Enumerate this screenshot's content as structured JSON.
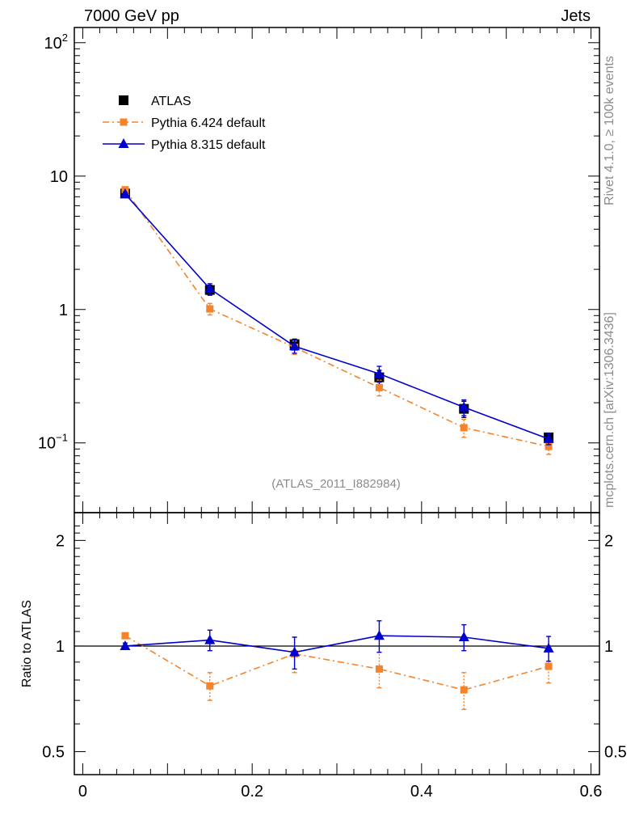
{
  "header": {
    "left": "7000 GeV pp",
    "right": "Jets"
  },
  "side": {
    "rivet": "Rivet 4.1.0, ≥ 100k events",
    "mcplots": "mcplots.cern.ch [arXiv:1306.3436]"
  },
  "chart_data": {
    "type": "line",
    "analysis_label": "(ATLAS_2011_I882984)",
    "x": [
      0.05,
      0.15,
      0.25,
      0.35,
      0.45,
      0.55
    ],
    "xlim": [
      -0.01,
      0.61
    ],
    "xticks": [
      0,
      0.2,
      0.4,
      0.6
    ],
    "xticklabels": [
      "0",
      "0.2",
      "0.4",
      "0.6"
    ],
    "main": {
      "yscale": "log",
      "ylim": [
        0.03,
        130
      ],
      "yticklabels": [
        {
          "value": 100,
          "base": "10",
          "exp": "2"
        },
        {
          "value": 10,
          "base": "10",
          "exp": ""
        },
        {
          "value": 1,
          "base": "1",
          "exp": ""
        },
        {
          "value": 0.1,
          "base": "10",
          "exp": "−1"
        }
      ]
    },
    "ratio": {
      "ylabel": "Ratio to ATLAS",
      "yscale": "log",
      "ylim": [
        0.43,
        2.4
      ],
      "yticklabels": [
        {
          "value": 2,
          "label": "2"
        },
        {
          "value": 1,
          "label": "1"
        },
        {
          "value": 0.5,
          "label": "0.5"
        }
      ]
    },
    "series": [
      {
        "name": "ATLAS",
        "color": "#000000",
        "marker": "square",
        "line": "none",
        "values": [
          7.4,
          1.4,
          0.55,
          0.31,
          0.18,
          0.11
        ],
        "err": [
          0.3,
          0.12,
          0.05,
          0.04,
          0.025,
          0.008
        ],
        "ratio": [
          1.0,
          1.0,
          1.0,
          1.0,
          1.0,
          1.0
        ],
        "ratio_err": [
          0.0,
          0.0,
          0.0,
          0.0,
          0.0,
          0.0
        ]
      },
      {
        "name": "Pythia 6.424 default",
        "color": "#f5832b",
        "marker": "square-small",
        "line": "dashdot",
        "values": [
          7.9,
          1.01,
          0.52,
          0.26,
          0.13,
          0.094
        ],
        "err": [
          0.2,
          0.1,
          0.06,
          0.035,
          0.02,
          0.012
        ],
        "ratio": [
          1.07,
          0.77,
          0.95,
          0.86,
          0.75,
          0.875
        ],
        "ratio_err": [
          0.02,
          0.07,
          0.11,
          0.1,
          0.09,
          0.09
        ]
      },
      {
        "name": "Pythia 8.315 default",
        "color": "#0000cc",
        "marker": "triangle",
        "line": "solid",
        "values": [
          7.35,
          1.43,
          0.53,
          0.33,
          0.185,
          0.107
        ],
        "err": [
          0.2,
          0.13,
          0.06,
          0.045,
          0.025,
          0.01
        ],
        "ratio": [
          1.0,
          1.04,
          0.96,
          1.07,
          1.06,
          0.985
        ],
        "ratio_err": [
          0.02,
          0.07,
          0.1,
          0.11,
          0.09,
          0.08
        ]
      }
    ]
  }
}
